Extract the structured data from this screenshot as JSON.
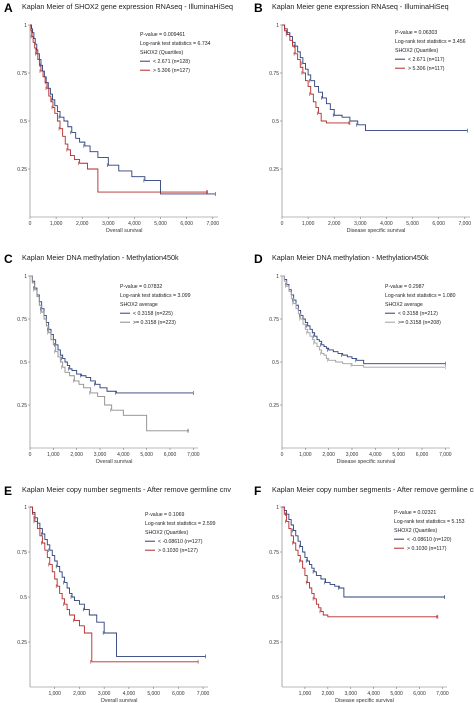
{
  "chart_data": [
    {
      "type": "line",
      "panel_label": "A",
      "title": "Kaplan Meier of SHOX2 gene expression RNAseq - IlluminaHiSeq",
      "stats": [
        "P-value = 0.009461",
        "Log-rank test statistics = 6.734",
        "SHOX2 (Quartiles)"
      ],
      "xlabel": "Overall survival",
      "xlim": [
        0,
        7200
      ],
      "ylim": [
        0,
        1
      ],
      "xticks": [
        0,
        1000,
        2000,
        3000,
        4000,
        5000,
        6000,
        7000
      ],
      "xtick_labels": [
        "0",
        "1,000",
        "2,000",
        "3,000",
        "4,000",
        "5,000",
        "6,000",
        "7,000"
      ],
      "yticks": [
        0.25,
        0.5,
        0.75,
        1
      ],
      "ytick_labels": [
        "0.25",
        "0.5",
        "0.75",
        "1"
      ],
      "series": [
        {
          "name": "< 2.671 (n=128)",
          "color": "#2b3f7a",
          "x": [
            0,
            60,
            100,
            150,
            200,
            260,
            300,
            360,
            420,
            480,
            550,
            620,
            700,
            780,
            860,
            950,
            1050,
            1150,
            1300,
            1450,
            1600,
            1750,
            1900,
            2100,
            2300,
            2600,
            3000,
            3400,
            3900,
            4400,
            5000,
            7100
          ],
          "y": [
            1,
            0.98,
            0.96,
            0.93,
            0.9,
            0.87,
            0.85,
            0.82,
            0.79,
            0.76,
            0.73,
            0.7,
            0.67,
            0.64,
            0.61,
            0.58,
            0.55,
            0.52,
            0.5,
            0.47,
            0.44,
            0.41,
            0.39,
            0.37,
            0.34,
            0.31,
            0.27,
            0.24,
            0.21,
            0.19,
            0.12,
            0.12
          ]
        },
        {
          "name": "> 5.306 (n=127)",
          "color": "#b22a2a",
          "x": [
            0,
            40,
            80,
            120,
            180,
            240,
            300,
            360,
            420,
            500,
            580,
            650,
            720,
            800,
            880,
            950,
            1050,
            1150,
            1250,
            1350,
            1450,
            1550,
            1700,
            1900,
            2200,
            2600,
            6800
          ],
          "y": [
            1,
            0.97,
            0.94,
            0.91,
            0.88,
            0.85,
            0.82,
            0.79,
            0.76,
            0.73,
            0.7,
            0.67,
            0.63,
            0.6,
            0.57,
            0.54,
            0.5,
            0.46,
            0.42,
            0.38,
            0.35,
            0.32,
            0.3,
            0.28,
            0.25,
            0.13,
            0.13
          ]
        }
      ]
    },
    {
      "type": "line",
      "panel_label": "B",
      "title": "Kaplan Meier gene expression RNAseq - IlluminaHiSeq",
      "stats": [
        "P-value = 0.06303",
        "Log-rank test statistics = 3.456",
        "SHOX2 (Quartiles)"
      ],
      "xlabel": "Disease specific survival",
      "xlim": [
        0,
        7200
      ],
      "ylim": [
        0,
        1
      ],
      "xticks": [
        0,
        1000,
        2000,
        3000,
        4000,
        5000,
        6000,
        7000
      ],
      "xtick_labels": [
        "0",
        "1,000",
        "2,000",
        "3,000",
        "4,000",
        "5,000",
        "6,000",
        "7,000"
      ],
      "yticks": [
        0.25,
        0.5,
        0.75,
        1
      ],
      "ytick_labels": [
        "0.25",
        "0.5",
        "0.75",
        "1"
      ],
      "series": [
        {
          "name": "< 2.671 (n=117)",
          "color": "#2b3f7a",
          "x": [
            0,
            100,
            200,
            300,
            400,
            500,
            600,
            700,
            800,
            900,
            1000,
            1100,
            1250,
            1400,
            1550,
            1700,
            1850,
            2000,
            2300,
            2600,
            2900,
            3200,
            7100
          ],
          "y": [
            1,
            0.98,
            0.96,
            0.94,
            0.91,
            0.89,
            0.86,
            0.83,
            0.8,
            0.77,
            0.74,
            0.71,
            0.68,
            0.65,
            0.62,
            0.59,
            0.56,
            0.53,
            0.52,
            0.5,
            0.48,
            0.45,
            0.45
          ]
        },
        {
          "name": "> 5.306 (n=117)",
          "color": "#b22a2a",
          "x": [
            0,
            100,
            200,
            300,
            400,
            500,
            600,
            700,
            800,
            900,
            1000,
            1100,
            1200,
            1300,
            1400,
            1500,
            1700,
            2600
          ],
          "y": [
            1,
            0.97,
            0.95,
            0.92,
            0.89,
            0.85,
            0.82,
            0.78,
            0.75,
            0.71,
            0.68,
            0.64,
            0.6,
            0.57,
            0.54,
            0.5,
            0.49,
            0.49
          ]
        }
      ]
    },
    {
      "type": "line",
      "panel_label": "C",
      "title": "Kaplan Meier DNA methylation - Methylation450k",
      "stats": [
        "P-value = 0.07832",
        "Log-rank test statistics = 3.099",
        "SHOX2 average"
      ],
      "xlabel": "Overall survival",
      "xlim": [
        0,
        7200
      ],
      "ylim": [
        0,
        1
      ],
      "xticks": [
        0,
        1000,
        2000,
        3000,
        4000,
        5000,
        6000,
        7000
      ],
      "xtick_labels": [
        "0",
        "1,000",
        "2,000",
        "3,000",
        "4,000",
        "5,000",
        "6,000",
        "7,000"
      ],
      "yticks": [
        0.25,
        0.5,
        0.75,
        1
      ],
      "ytick_labels": [
        "0.25",
        "0.5",
        "0.75",
        "1"
      ],
      "series": [
        {
          "name": "< 0.3158 (n=225)",
          "color": "#2b3f7a",
          "x": [
            0,
            100,
            200,
            300,
            400,
            500,
            600,
            700,
            800,
            900,
            1000,
            1100,
            1200,
            1300,
            1400,
            1500,
            1600,
            1700,
            1800,
            2000,
            2200,
            2400,
            2600,
            2800,
            3000,
            3300,
            3700,
            7000
          ],
          "y": [
            1,
            0.97,
            0.93,
            0.89,
            0.85,
            0.81,
            0.77,
            0.73,
            0.69,
            0.66,
            0.63,
            0.6,
            0.57,
            0.54,
            0.52,
            0.5,
            0.48,
            0.46,
            0.45,
            0.43,
            0.42,
            0.41,
            0.39,
            0.37,
            0.35,
            0.33,
            0.32,
            0.32
          ]
        },
        {
          "name": ">= 0.3158 (n=223)",
          "color": "#8c8c8c",
          "x": [
            0,
            100,
            200,
            300,
            400,
            500,
            600,
            700,
            800,
            900,
            1000,
            1100,
            1200,
            1300,
            1400,
            1500,
            1700,
            1900,
            2100,
            2300,
            2600,
            2900,
            3200,
            3500,
            4000,
            5000,
            6800
          ],
          "y": [
            1,
            0.96,
            0.92,
            0.88,
            0.83,
            0.79,
            0.75,
            0.71,
            0.67,
            0.63,
            0.6,
            0.56,
            0.53,
            0.5,
            0.47,
            0.44,
            0.42,
            0.39,
            0.37,
            0.35,
            0.32,
            0.3,
            0.25,
            0.22,
            0.19,
            0.1,
            0.1
          ]
        }
      ]
    },
    {
      "type": "line",
      "panel_label": "D",
      "title": "Kaplan Meier DNA methylation - Methylation450k",
      "stats": [
        "P-value = 0.2987",
        "Log-rank test statistics = 1.080",
        "SHOX2 average"
      ],
      "xlabel": "Disease specific survival",
      "xlim": [
        0,
        7200
      ],
      "ylim": [
        0,
        1
      ],
      "xticks": [
        0,
        1000,
        2000,
        3000,
        4000,
        5000,
        6000,
        7000
      ],
      "xtick_labels": [
        "0",
        "1,000",
        "2,000",
        "3,000",
        "4,000",
        "5,000",
        "6,000",
        "7,000"
      ],
      "yticks": [
        0.25,
        0.5,
        0.75,
        1
      ],
      "ytick_labels": [
        "0.25",
        "0.5",
        "0.75",
        "1"
      ],
      "series": [
        {
          "name": "< 0.3158 (n=212)",
          "color": "#2b3f7a",
          "x": [
            0,
            100,
            200,
            300,
            400,
            500,
            600,
            700,
            800,
            900,
            1000,
            1100,
            1200,
            1300,
            1400,
            1500,
            1600,
            1700,
            1800,
            1900,
            2000,
            2200,
            2400,
            2600,
            2800,
            3000,
            3200,
            3500,
            7000
          ],
          "y": [
            1,
            0.98,
            0.95,
            0.92,
            0.89,
            0.86,
            0.83,
            0.8,
            0.77,
            0.75,
            0.73,
            0.71,
            0.69,
            0.67,
            0.65,
            0.63,
            0.62,
            0.6,
            0.59,
            0.58,
            0.57,
            0.56,
            0.55,
            0.54,
            0.53,
            0.52,
            0.51,
            0.49,
            0.49
          ]
        },
        {
          "name": ">= 0.3158 (n=208)",
          "color": "#a0a0a0",
          "x": [
            0,
            100,
            200,
            300,
            400,
            500,
            600,
            700,
            800,
            900,
            1000,
            1100,
            1200,
            1300,
            1400,
            1500,
            1600,
            1700,
            1800,
            1900,
            2000,
            2300,
            2600,
            3000,
            3500,
            7000
          ],
          "y": [
            1,
            0.97,
            0.94,
            0.91,
            0.87,
            0.84,
            0.81,
            0.78,
            0.75,
            0.72,
            0.69,
            0.67,
            0.65,
            0.63,
            0.61,
            0.59,
            0.57,
            0.55,
            0.54,
            0.52,
            0.51,
            0.5,
            0.49,
            0.48,
            0.47,
            0.47
          ]
        }
      ]
    },
    {
      "type": "line",
      "panel_label": "E",
      "title": "Kaplan Meier copy number segments - After remove germline cnv",
      "stats": [
        "P-value = 0.1069",
        "Log-rank test statistics = 2.599",
        "SHOX2 (Quartiles)"
      ],
      "xlabel": "Overall survival",
      "xlim": [
        0,
        7200
      ],
      "ylim": [
        0,
        1
      ],
      "xticks": [
        1000,
        2000,
        3000,
        4000,
        5000,
        6000,
        7000
      ],
      "xtick_labels": [
        "1,000",
        "2,000",
        "3,000",
        "4,000",
        "5,000",
        "6,000",
        "7,000"
      ],
      "yticks": [
        0.25,
        0.5,
        0.75,
        1
      ],
      "ytick_labels": [
        "0.25",
        "0.5",
        "0.75",
        "1"
      ],
      "series": [
        {
          "name": "< -0.08610 (n=127)",
          "color": "#2b3f7a",
          "x": [
            0,
            100,
            200,
            300,
            400,
            500,
            600,
            700,
            800,
            900,
            1000,
            1100,
            1200,
            1300,
            1400,
            1500,
            1600,
            1700,
            1800,
            2000,
            2200,
            2400,
            2700,
            3000,
            3500,
            7100
          ],
          "y": [
            1,
            0.97,
            0.94,
            0.91,
            0.88,
            0.85,
            0.82,
            0.79,
            0.76,
            0.73,
            0.7,
            0.67,
            0.64,
            0.61,
            0.58,
            0.55,
            0.52,
            0.5,
            0.48,
            0.46,
            0.43,
            0.4,
            0.36,
            0.3,
            0.17,
            0.17
          ]
        },
        {
          "name": "> 0.1030 (n=127)",
          "color": "#b22a2a",
          "x": [
            0,
            100,
            200,
            300,
            400,
            500,
            600,
            700,
            800,
            900,
            1000,
            1100,
            1200,
            1300,
            1400,
            1500,
            1600,
            1800,
            2000,
            2200,
            2500,
            6800
          ],
          "y": [
            1,
            0.96,
            0.92,
            0.88,
            0.84,
            0.8,
            0.76,
            0.72,
            0.68,
            0.64,
            0.6,
            0.56,
            0.52,
            0.49,
            0.46,
            0.43,
            0.4,
            0.37,
            0.34,
            0.3,
            0.14,
            0.14
          ]
        }
      ]
    },
    {
      "type": "line",
      "panel_label": "F",
      "title": "Kaplan Meier copy number segments - After remove germline cnv",
      "stats": [
        "P-value = 0.02321",
        "Log-rank test statistics = 5.153",
        "SHOX2 (Quartiles)"
      ],
      "xlabel": "Disease specific survival",
      "xlim": [
        0,
        7200
      ],
      "ylim": [
        0,
        1
      ],
      "xticks": [
        1000,
        2000,
        3000,
        4000,
        5000,
        6000,
        7000
      ],
      "xtick_labels": [
        "1,000",
        "2,000",
        "3,000",
        "4,000",
        "5,000",
        "6,000",
        "7,000"
      ],
      "yticks": [
        0.25,
        0.5,
        0.75,
        1
      ],
      "ytick_labels": [
        "0.25",
        "0.5",
        "0.75",
        "1"
      ],
      "series": [
        {
          "name": "< -0.08610 (n=120)",
          "color": "#2b3f7a",
          "x": [
            0,
            100,
            200,
            300,
            400,
            500,
            600,
            700,
            800,
            900,
            1000,
            1100,
            1200,
            1300,
            1400,
            1500,
            1700,
            1900,
            2100,
            2300,
            2500,
            2700,
            7100
          ],
          "y": [
            1,
            0.98,
            0.96,
            0.93,
            0.9,
            0.87,
            0.84,
            0.81,
            0.78,
            0.75,
            0.72,
            0.7,
            0.68,
            0.66,
            0.64,
            0.62,
            0.6,
            0.58,
            0.57,
            0.56,
            0.55,
            0.5,
            0.5
          ]
        },
        {
          "name": "> 0.1030 (n=117)",
          "color": "#b22a2a",
          "x": [
            0,
            100,
            200,
            300,
            400,
            500,
            600,
            700,
            800,
            900,
            1000,
            1100,
            1200,
            1300,
            1400,
            1500,
            1600,
            1700,
            1800,
            2000,
            6800
          ],
          "y": [
            1,
            0.96,
            0.92,
            0.88,
            0.84,
            0.8,
            0.76,
            0.73,
            0.7,
            0.66,
            0.62,
            0.58,
            0.55,
            0.52,
            0.49,
            0.46,
            0.44,
            0.42,
            0.4,
            0.39,
            0.39
          ]
        }
      ]
    }
  ]
}
